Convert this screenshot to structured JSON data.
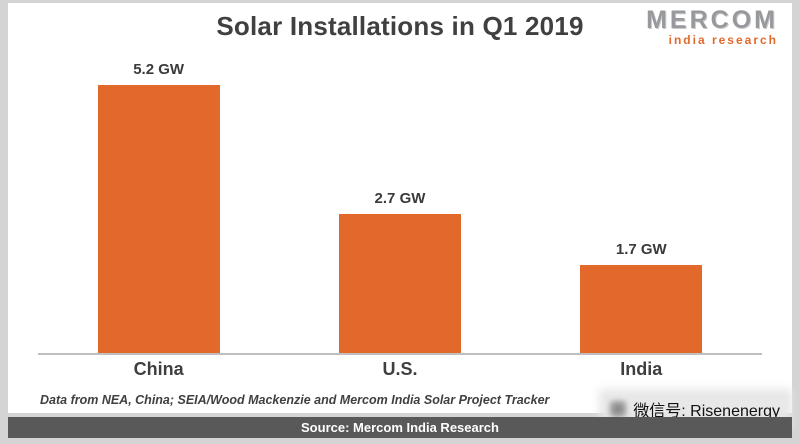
{
  "title": "Solar Installations in Q1 2019",
  "logo": {
    "name": "MERCOM",
    "subtitle": "india research"
  },
  "chart_data": {
    "type": "bar",
    "title": "Solar Installations in Q1 2019",
    "categories": [
      "China",
      "U.S.",
      "India"
    ],
    "values": [
      5.2,
      2.7,
      1.7
    ],
    "value_labels": [
      "5.2 GW",
      "2.7 GW",
      "1.7 GW"
    ],
    "unit": "GW",
    "ylim": [
      0,
      5.2
    ],
    "bar_color": "#e2692b",
    "grid": false,
    "legend": "none"
  },
  "footnote": "Data from NEA, China; SEIA/Wood Mackenzie and Mercom India Solar Project Tracker",
  "watermark": "微信号: Risenenergy",
  "source": "Source: Mercom India Research",
  "colors": {
    "bar": "#e2692b",
    "text": "#404040",
    "source_bar_bg": "#595959",
    "frame": "#d4d4d4",
    "axis_line": "#bfbfbf",
    "logo_gray": "#97999c",
    "logo_orange": "#e2692b"
  }
}
